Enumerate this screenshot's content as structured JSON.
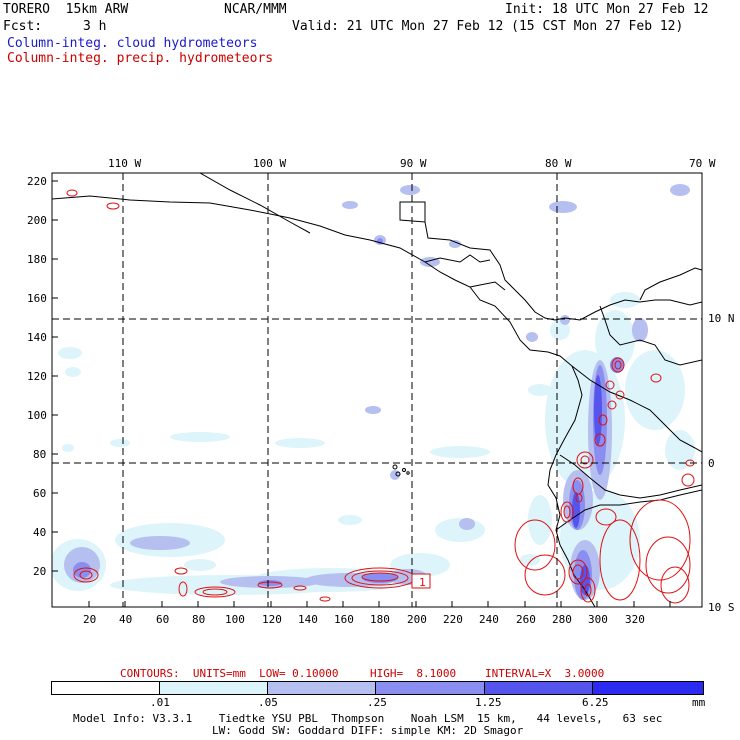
{
  "header": {
    "model": "TORERO  15km ARW",
    "org": "NCAR/MMM",
    "init": "Init: 18 UTC Mon 27 Feb 12",
    "fcst_label": "Fcst:",
    "fcst_value": "3 h",
    "valid": "Valid: 21 UTC Mon 27 Feb 12 (15 CST Mon 27 Feb 12)",
    "field1": "Column-integ. cloud hydrometeors",
    "field2": "Column-integ. precip. hydrometeors"
  },
  "colors": {
    "field1": "#1a1acc",
    "field2": "#cc0000",
    "map_lines": "#000000",
    "contour": "#dd1111"
  },
  "top_lon_labels": [
    "110 W",
    "100 W",
    "90 W",
    "80 W",
    "70 W"
  ],
  "right_lat_labels": [
    "10 N",
    "0",
    "10 S"
  ],
  "y_ticks": [
    "220",
    "200",
    "180",
    "160",
    "140",
    "120",
    "100",
    "80",
    "60",
    "40",
    "20"
  ],
  "x_ticks": [
    "20",
    "40",
    "60",
    "80",
    "100",
    "120",
    "140",
    "160",
    "180",
    "200",
    "220",
    "240",
    "260",
    "280",
    "300",
    "320"
  ],
  "contour_note": {
    "contours": "CONTOURS:  UNITS=mm  LOW= 0.10000",
    "high": "HIGH=  8.1000",
    "interval": "INTERVAL=X  3.0000"
  },
  "legend": {
    "labels": [
      ".01",
      ".05",
      ".25",
      "1.25",
      "6.25"
    ],
    "units": "mm",
    "colors": [
      "#ffffff",
      "#ddf4fa",
      "#b5bff0",
      "#8a8ef0",
      "#5555ee",
      "#2a2af0"
    ]
  },
  "box_label": "1",
  "footer": {
    "line1": "Model Info: V3.3.1    Tiedtke YSU PBL  Thompson    Noah LSM  15 km,   44 levels,   63 sec",
    "line2": "LW: Godd SW: Goddard DIFF: simple KM: 2D Smagor"
  }
}
